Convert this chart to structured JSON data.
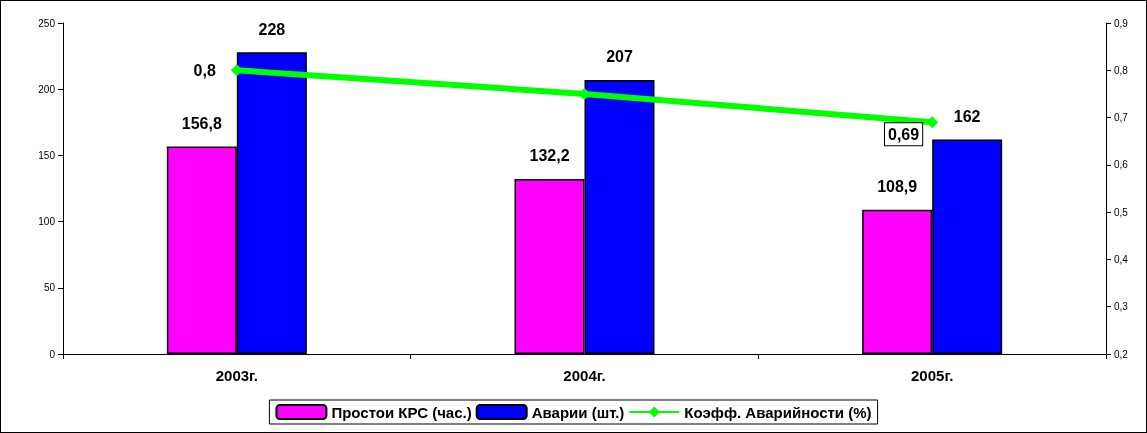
{
  "chart_data": {
    "type": "bar",
    "categories": [
      "2003г.",
      "2004г.",
      "2005г."
    ],
    "series": [
      {
        "name": "Простои КРС (час.)",
        "color": "#ff00ff",
        "values": [
          156.8,
          132.2,
          108.9
        ],
        "value_labels": [
          "156,8",
          "132,2",
          "108,9"
        ]
      },
      {
        "name": "Аварии (шт.)",
        "color": "#0000ff",
        "values": [
          228,
          207,
          162
        ],
        "value_labels": [
          "228",
          "207",
          "162"
        ]
      },
      {
        "name": "Коэфф. Аварийности (%)",
        "type": "line",
        "axis": "y2",
        "color": "#00ff00",
        "values": [
          0.8,
          0.75,
          0.69
        ],
        "value_labels": [
          "0,8",
          null,
          "0,69"
        ]
      }
    ],
    "ylim": [
      0,
      250
    ],
    "yticks": [
      0,
      50,
      100,
      150,
      200,
      250
    ],
    "y2lim": [
      0.2,
      0.9
    ],
    "y2ticks": [
      {
        "value": 0.2,
        "label": "0,2"
      },
      {
        "value": 0.3,
        "label": "0,3"
      },
      {
        "value": 0.4,
        "label": "0,4"
      },
      {
        "value": 0.5,
        "label": "0,5"
      },
      {
        "value": 0.6,
        "label": "0,6"
      },
      {
        "value": 0.7,
        "label": "0,7"
      },
      {
        "value": 0.8,
        "label": "0,8"
      },
      {
        "value": 0.9,
        "label": "0,9"
      }
    ],
    "grid": false,
    "legend": "bottom",
    "marker": "diamond",
    "line_style": "solid"
  }
}
